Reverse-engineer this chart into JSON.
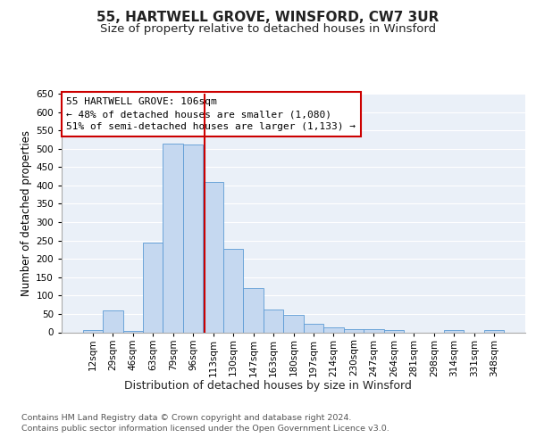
{
  "title1": "55, HARTWELL GROVE, WINSFORD, CW7 3UR",
  "title2": "Size of property relative to detached houses in Winsford",
  "xlabel": "Distribution of detached houses by size in Winsford",
  "ylabel": "Number of detached properties",
  "categories": [
    "12sqm",
    "29sqm",
    "46sqm",
    "63sqm",
    "79sqm",
    "96sqm",
    "113sqm",
    "130sqm",
    "147sqm",
    "163sqm",
    "180sqm",
    "197sqm",
    "214sqm",
    "230sqm",
    "247sqm",
    "264sqm",
    "281sqm",
    "298sqm",
    "314sqm",
    "331sqm",
    "348sqm"
  ],
  "values": [
    5,
    60,
    4,
    245,
    515,
    512,
    410,
    228,
    120,
    63,
    48,
    22,
    13,
    9,
    8,
    7,
    0,
    0,
    5,
    0,
    7
  ],
  "bar_color": "#c5d8f0",
  "bar_edge_color": "#5b9bd5",
  "annotation_line1": "55 HARTWELL GROVE: 106sqm",
  "annotation_line2": "← 48% of detached houses are smaller (1,080)",
  "annotation_line3": "51% of semi-detached houses are larger (1,133) →",
  "annotation_box_color": "#ffffff",
  "annotation_box_edge_color": "#cc0000",
  "footer1": "Contains HM Land Registry data © Crown copyright and database right 2024.",
  "footer2": "Contains public sector information licensed under the Open Government Licence v3.0.",
  "ylim": [
    0,
    650
  ],
  "yticks": [
    0,
    50,
    100,
    150,
    200,
    250,
    300,
    350,
    400,
    450,
    500,
    550,
    600,
    650
  ],
  "bg_color": "#eaf0f8",
  "fig_bg_color": "#ffffff",
  "grid_color": "#ffffff",
  "red_line_color": "#cc0000",
  "title1_fontsize": 11,
  "title2_fontsize": 9.5,
  "xlabel_fontsize": 9,
  "ylabel_fontsize": 8.5,
  "tick_fontsize": 7.5,
  "annotation_fontsize": 8,
  "footer_fontsize": 6.8
}
